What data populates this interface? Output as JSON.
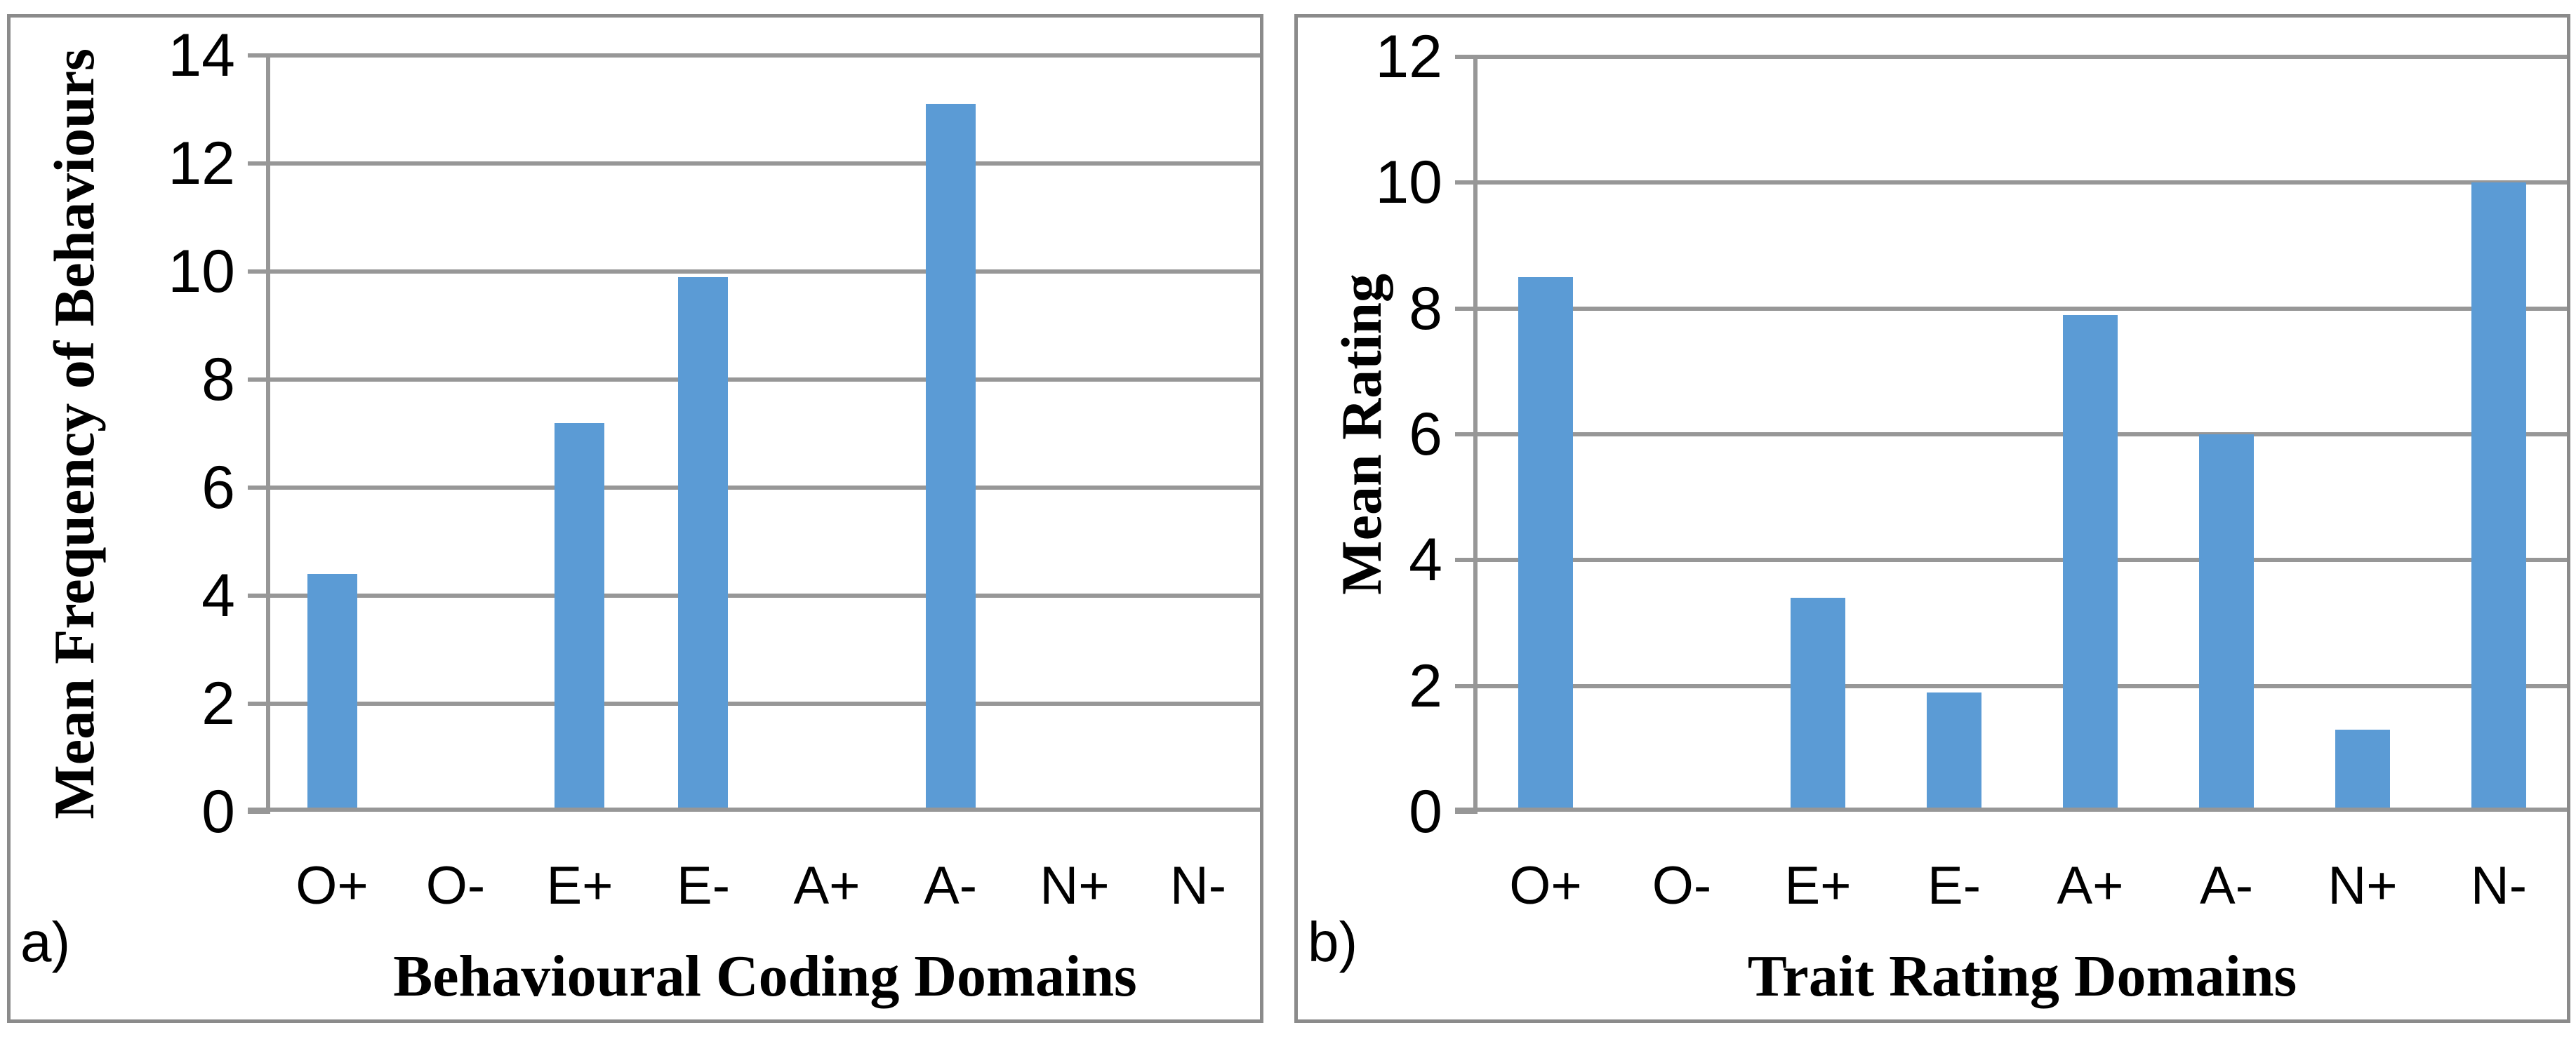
{
  "figure": {
    "background": "#ffffff",
    "border_color": "#8b8b8b",
    "grid_color": "#979797",
    "text_color": "#000000",
    "bar_color": "#5b9bd5"
  },
  "chart_data": [
    {
      "type": "bar",
      "panel_label": "a)",
      "categories": [
        "O+",
        "O-",
        "E+",
        "E-",
        "A+",
        "A-",
        "N+",
        "N-"
      ],
      "values": [
        4.4,
        0,
        7.2,
        9.9,
        0,
        13.1,
        0,
        0
      ],
      "xlabel": "Behavioural Coding Domains",
      "ylabel": "Mean Frequency of Behaviours",
      "ylim": [
        0,
        14
      ],
      "yticks": [
        0,
        2,
        4,
        6,
        8,
        10,
        12,
        14
      ],
      "grid": true,
      "bar_color": "#5b9bd5"
    },
    {
      "type": "bar",
      "panel_label": "b)",
      "categories": [
        "O+",
        "O-",
        "E+",
        "E-",
        "A+",
        "A-",
        "N+",
        "N-"
      ],
      "values": [
        8.5,
        0,
        3.4,
        1.9,
        7.9,
        6.0,
        1.3,
        10.0
      ],
      "xlabel": "Trait Rating Domains",
      "ylabel": "Mean Rating",
      "ylim": [
        0,
        12
      ],
      "yticks": [
        0,
        2,
        4,
        6,
        8,
        10,
        12
      ],
      "grid": true,
      "bar_color": "#5b9bd5"
    }
  ]
}
